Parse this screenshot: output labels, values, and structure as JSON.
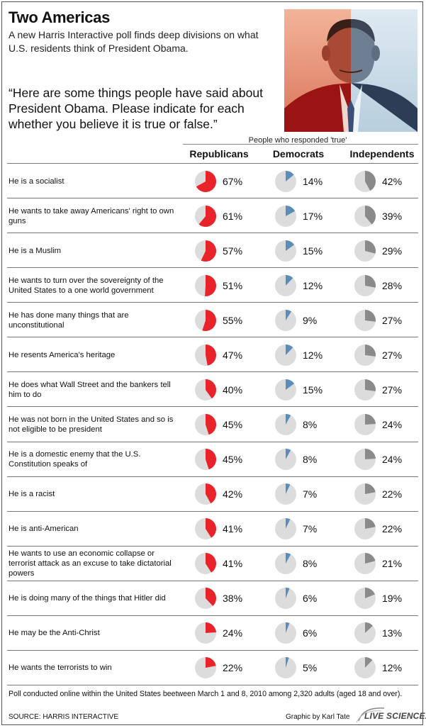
{
  "header": {
    "title": "Two Americas",
    "subtitle": "A new Harris Interactive poll finds deep divisions on what U.S. residents think of President Obama.",
    "quote": "“Here are some things people have said about President Obama. Please indicate for each whether you believe it is true or false.”"
  },
  "colors": {
    "republicans": "#e8232a",
    "democrats": "#5b8db8",
    "independents": "#8a8a8a",
    "pie_background": "#dcdcdc"
  },
  "chart_data": {
    "type": "table",
    "caption": "People who responded 'true'",
    "columns": [
      "Republicans",
      "Democrats",
      "Independents"
    ],
    "units": "%",
    "rows": [
      {
        "statement": "He is a socialist",
        "values": [
          67,
          14,
          42
        ]
      },
      {
        "statement": "He wants to take away Americans' right to own guns",
        "values": [
          61,
          17,
          39
        ]
      },
      {
        "statement": "He is a Muslim",
        "values": [
          57,
          15,
          29
        ]
      },
      {
        "statement": "He wants to turn over the sovereignty of the United States to a one world government",
        "values": [
          51,
          12,
          28
        ]
      },
      {
        "statement": "He has done many things that are unconstitutional",
        "values": [
          55,
          9,
          27
        ]
      },
      {
        "statement": "He resents America's heritage",
        "values": [
          47,
          12,
          27
        ]
      },
      {
        "statement": "He does what Wall Street and the bankers tell him to do",
        "values": [
          40,
          15,
          27
        ]
      },
      {
        "statement": "He was not born in the United States and so is not eligible to be president",
        "values": [
          45,
          8,
          24
        ]
      },
      {
        "statement": "He is a domestic enemy that the U.S. Constitution speaks of",
        "values": [
          45,
          8,
          24
        ]
      },
      {
        "statement": "He is a racist",
        "values": [
          42,
          7,
          22
        ]
      },
      {
        "statement": "He is anti-American",
        "values": [
          41,
          7,
          22
        ]
      },
      {
        "statement": "He wants to use an economic collapse or terrorist attack as an excuse to take dictatorial powers",
        "values": [
          41,
          8,
          21
        ]
      },
      {
        "statement": "He is doing many of the things that Hitler did",
        "values": [
          38,
          6,
          19
        ]
      },
      {
        "statement": "He may be the Anti-Christ",
        "values": [
          24,
          6,
          13
        ]
      },
      {
        "statement": "He wants the terrorists to win",
        "values": [
          22,
          5,
          12
        ]
      }
    ]
  },
  "footer": {
    "note": "Poll conducted online within the United States beetween March 1 and 8, 2010 among 2,320 adults (aged 18 and over).",
    "source": "SOURCE: HARRIS INTERACTIVE",
    "credit": "Graphic by Karl Tate",
    "logo_text": "LIVE SCIENCE."
  }
}
